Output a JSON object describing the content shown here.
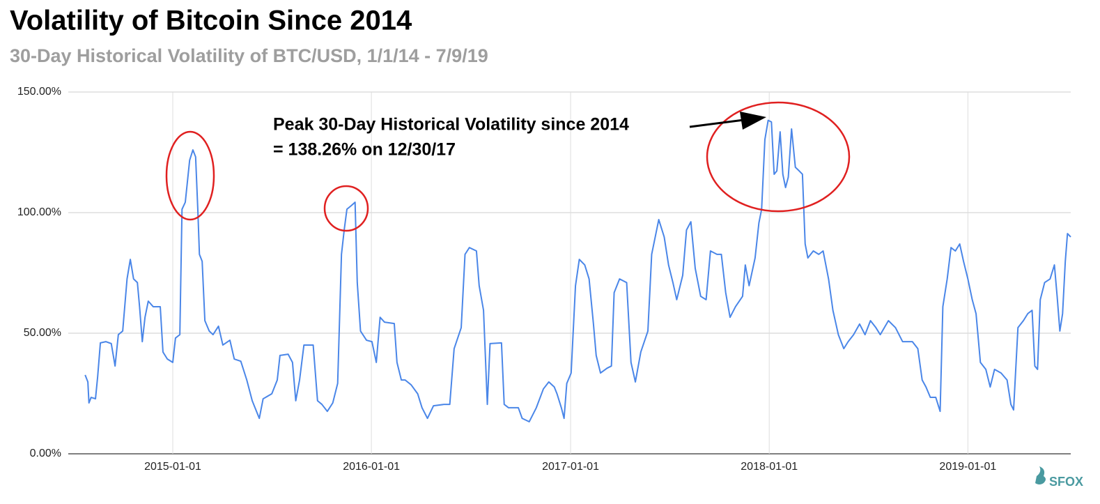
{
  "chart_data": {
    "type": "line",
    "title": "Volatility of Bitcoin Since 2014",
    "subtitle": "30-Day Historical Volatility of BTC/USD, 1/1/14 - 7/9/19",
    "annotations": [
      "Peak 30-Day Historical Volatility since 2014",
      "= 138.26% on 12/30/17"
    ],
    "logo": "SFOX",
    "grid": true,
    "xlim": [
      "2014-06-23",
      "2019-07-09"
    ],
    "xticks": [
      "2015-01-01",
      "2016-01-01",
      "2017-01-01",
      "2018-01-01",
      "2019-01-01"
    ],
    "ylim": [
      0,
      150
    ],
    "yticks": [
      {
        "value": 0,
        "label": "0.00%"
      },
      {
        "value": 50,
        "label": "50.00%"
      },
      {
        "value": 100,
        "label": "100.00%"
      },
      {
        "value": 150,
        "label": "150.00%"
      }
    ],
    "x": [
      "2014-07-24",
      "2014-07-29",
      "2014-07-31",
      "2014-08-04",
      "2014-08-12",
      "2014-08-16",
      "2014-08-21",
      "2014-08-31",
      "2014-09-10",
      "2014-09-17",
      "2014-09-23",
      "2014-10-01",
      "2014-10-09",
      "2014-10-15",
      "2014-10-21",
      "2014-10-28",
      "2014-11-01",
      "2014-11-06",
      "2014-11-11",
      "2014-11-17",
      "2014-11-26",
      "2014-12-09",
      "2014-12-14",
      "2014-12-22",
      "2015-01-01",
      "2015-01-06",
      "2015-01-14",
      "2015-01-18",
      "2015-01-24",
      "2015-02-01",
      "2015-02-07",
      "2015-02-12",
      "2015-02-16",
      "2015-02-19",
      "2015-02-24",
      "2015-03-01",
      "2015-03-09",
      "2015-03-16",
      "2015-03-26",
      "2015-04-03",
      "2015-04-16",
      "2015-04-24",
      "2015-05-06",
      "2015-05-17",
      "2015-05-27",
      "2015-06-09",
      "2015-06-16",
      "2015-07-02",
      "2015-07-12",
      "2015-07-17",
      "2015-08-01",
      "2015-08-09",
      "2015-08-15",
      "2015-08-22",
      "2015-08-30",
      "2015-09-16",
      "2015-09-24",
      "2015-10-02",
      "2015-10-12",
      "2015-10-22",
      "2015-10-31",
      "2015-11-07",
      "2015-11-12",
      "2015-11-17",
      "2015-11-25",
      "2015-12-02",
      "2015-12-06",
      "2015-12-12",
      "2015-12-23",
      "2016-01-02",
      "2016-01-10",
      "2016-01-17",
      "2016-01-25",
      "2016-02-12",
      "2016-02-17",
      "2016-02-25",
      "2016-03-03",
      "2016-03-14",
      "2016-03-26",
      "2016-04-03",
      "2016-04-13",
      "2016-04-24",
      "2016-05-14",
      "2016-05-24",
      "2016-06-01",
      "2016-06-14",
      "2016-06-21",
      "2016-06-29",
      "2016-07-12",
      "2016-07-17",
      "2016-07-25",
      "2016-08-01",
      "2016-08-06",
      "2016-08-27",
      "2016-09-01",
      "2016-09-09",
      "2016-09-27",
      "2016-10-04",
      "2016-10-17",
      "2016-10-30",
      "2016-11-12",
      "2016-11-22",
      "2016-12-02",
      "2016-12-07",
      "2016-12-15",
      "2016-12-20",
      "2016-12-25",
      "2017-01-02",
      "2017-01-10",
      "2017-01-17",
      "2017-01-27",
      "2017-02-04",
      "2017-02-12",
      "2017-02-17",
      "2017-02-25",
      "2017-03-09",
      "2017-03-17",
      "2017-03-22",
      "2017-04-01",
      "2017-04-14",
      "2017-04-22",
      "2017-04-30",
      "2017-05-10",
      "2017-05-23",
      "2017-05-30",
      "2017-06-12",
      "2017-06-22",
      "2017-06-30",
      "2017-07-08",
      "2017-07-15",
      "2017-07-26",
      "2017-08-02",
      "2017-08-10",
      "2017-08-18",
      "2017-08-28",
      "2017-09-07",
      "2017-09-15",
      "2017-09-27",
      "2017-10-05",
      "2017-10-13",
      "2017-10-21",
      "2017-10-31",
      "2017-11-13",
      "2017-11-18",
      "2017-11-25",
      "2017-12-06",
      "2017-12-13",
      "2017-12-18",
      "2017-12-24",
      "2017-12-30",
      "2018-01-05",
      "2018-01-10",
      "2018-01-15",
      "2018-01-21",
      "2018-01-26",
      "2018-01-31",
      "2018-02-05",
      "2018-02-11",
      "2018-02-18",
      "2018-02-25",
      "2018-03-03",
      "2018-03-08",
      "2018-03-13",
      "2018-03-23",
      "2018-04-02",
      "2018-04-10",
      "2018-04-20",
      "2018-04-28",
      "2018-05-08",
      "2018-05-18",
      "2018-05-26",
      "2018-06-05",
      "2018-06-16",
      "2018-06-26",
      "2018-07-06",
      "2018-07-16",
      "2018-07-24",
      "2018-08-08",
      "2018-08-21",
      "2018-09-03",
      "2018-09-21",
      "2018-10-01",
      "2018-10-09",
      "2018-10-16",
      "2018-10-24",
      "2018-11-03",
      "2018-11-11",
      "2018-11-16",
      "2018-11-24",
      "2018-12-01",
      "2018-12-09",
      "2018-12-17",
      "2018-12-24",
      "2019-01-01",
      "2019-01-09",
      "2019-01-16",
      "2019-01-24",
      "2019-02-03",
      "2019-02-11",
      "2019-02-19",
      "2019-03-03",
      "2019-03-14",
      "2019-03-21",
      "2019-03-26",
      "2019-04-03",
      "2019-04-13",
      "2019-04-21",
      "2019-04-29",
      "2019-05-04",
      "2019-05-09",
      "2019-05-14",
      "2019-05-22",
      "2019-06-01",
      "2019-06-09",
      "2019-06-14",
      "2019-06-19",
      "2019-06-24",
      "2019-06-29",
      "2019-07-03",
      "2019-07-09"
    ],
    "series": [
      {
        "name": "30-Day Historical Volatility",
        "color": "#4a86e8",
        "values": [
          32.7,
          29.8,
          21.1,
          23.4,
          22.8,
          32,
          46,
          46.5,
          45.7,
          36.4,
          49.4,
          50.9,
          72.5,
          80.6,
          72.5,
          71,
          61,
          46.5,
          56.6,
          63.3,
          61,
          61,
          42.2,
          39.3,
          37.9,
          48,
          49.4,
          101.4,
          104.3,
          121.7,
          126,
          123.1,
          101.4,
          82.7,
          79.8,
          55.2,
          50.9,
          49.4,
          52.9,
          45.1,
          47.1,
          39.3,
          38.4,
          30.6,
          22,
          14.7,
          22.8,
          24.9,
          30.6,
          40.8,
          41.3,
          37.9,
          22,
          30.6,
          45.1,
          45.1,
          22,
          20.5,
          17.6,
          21.1,
          29.2,
          82.7,
          92.8,
          101.4,
          102.9,
          104.3,
          71,
          50.9,
          47.1,
          46.5,
          37.9,
          56.6,
          54.6,
          54,
          37.9,
          30.6,
          30.6,
          28.6,
          24.9,
          19.1,
          14.7,
          19.9,
          20.5,
          20.5,
          43.6,
          52.3,
          82.7,
          85.5,
          84.1,
          69.7,
          59.5,
          20.5,
          45.7,
          46,
          20.5,
          19.1,
          19.1,
          14.7,
          13.3,
          19.1,
          26.9,
          29.8,
          27.7,
          24.9,
          19.1,
          14.7,
          29.2,
          33.5,
          69.7,
          80.6,
          78.3,
          72.5,
          53.8,
          40.8,
          33.5,
          35.5,
          36.4,
          66.8,
          72.5,
          71,
          37.9,
          29.8,
          42.2,
          50.9,
          82.7,
          97.1,
          89.9,
          78.3,
          71,
          63.9,
          74,
          92.8,
          96.2,
          76.9,
          65.3,
          63.9,
          84.1,
          82.7,
          82.7,
          66.8,
          56.6,
          61,
          65.3,
          78.3,
          69.7,
          81.2,
          95.7,
          101.4,
          130.3,
          138.26,
          137.6,
          115.9,
          117.3,
          133.5,
          115.9,
          110.4,
          114.7,
          134.7,
          118.8,
          117.3,
          115.9,
          87,
          81.2,
          84.1,
          82.7,
          84.1,
          72.5,
          59.5,
          49.4,
          43.6,
          46.5,
          49.4,
          53.8,
          49.4,
          55.2,
          52.3,
          49.4,
          55.2,
          52.3,
          46.5,
          46.5,
          43.6,
          30.6,
          27.7,
          23.4,
          23.4,
          17.6,
          61,
          72.5,
          85.5,
          84.1,
          87,
          79.8,
          72.5,
          63.9,
          58.1,
          37.9,
          35,
          27.7,
          35,
          33.5,
          30.6,
          20.5,
          18.2,
          52.3,
          55.2,
          58.1,
          59.5,
          36.4,
          35,
          63.9,
          71,
          72.5,
          78.3,
          65.3,
          50.9,
          58.1,
          79.8,
          91.3,
          89.9
        ]
      }
    ]
  }
}
